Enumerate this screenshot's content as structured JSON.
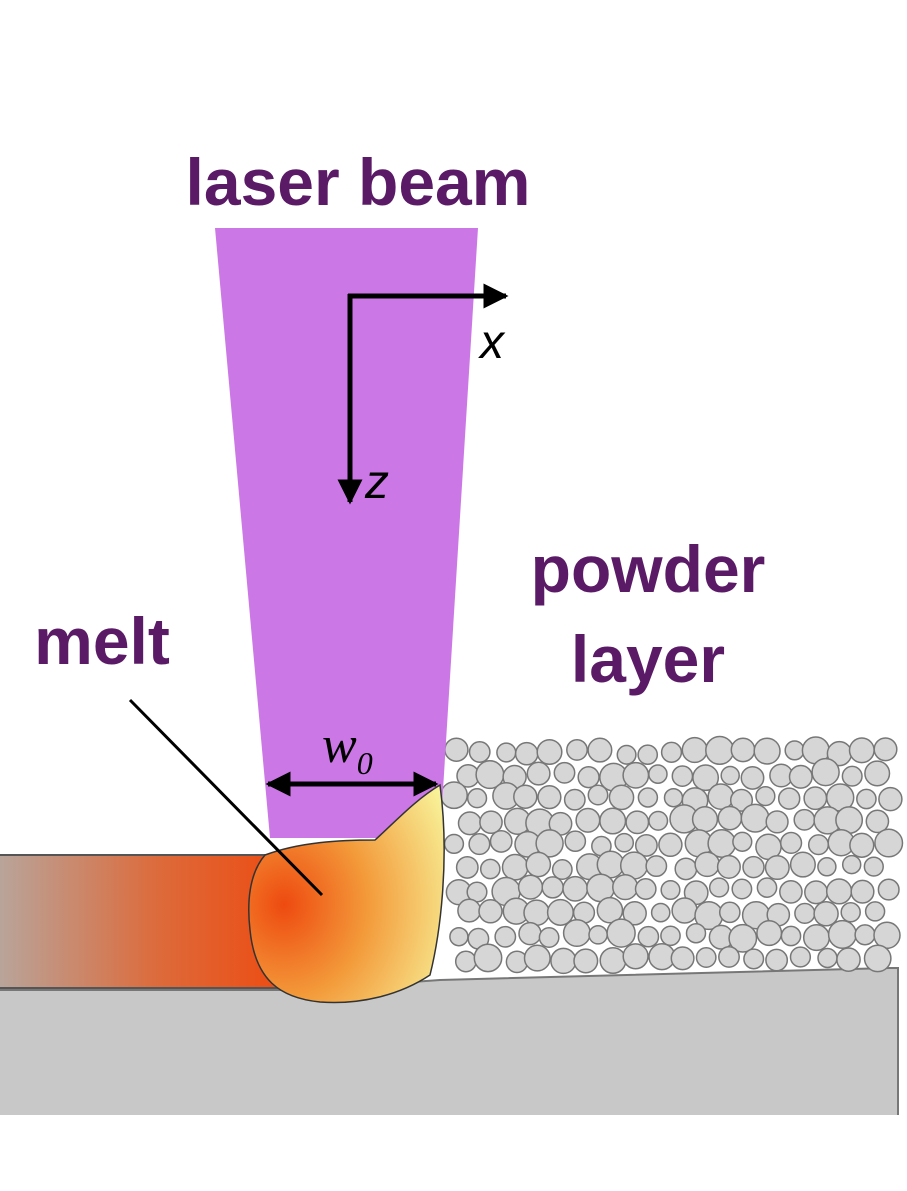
{
  "labels": {
    "laser_beam": "laser beam",
    "melt": "melt",
    "powder_line1": "powder",
    "powder_line2": "layer",
    "axis_x": "x",
    "axis_z": "z",
    "width_main": "w",
    "width_sub": "0"
  },
  "colors": {
    "label_text": "#5a1a66",
    "beam": "#cc77e6",
    "substrate": "#c8c8c8",
    "track_hot": "#ee4a10",
    "track_cool": "#b9a49a",
    "melt_hot": "#ee4a10",
    "melt_mid": "#f39a3a",
    "melt_cool": "#f8f39a",
    "powder": "#d6d6d6",
    "powder_edge": "#777777",
    "line": "#000000"
  }
}
